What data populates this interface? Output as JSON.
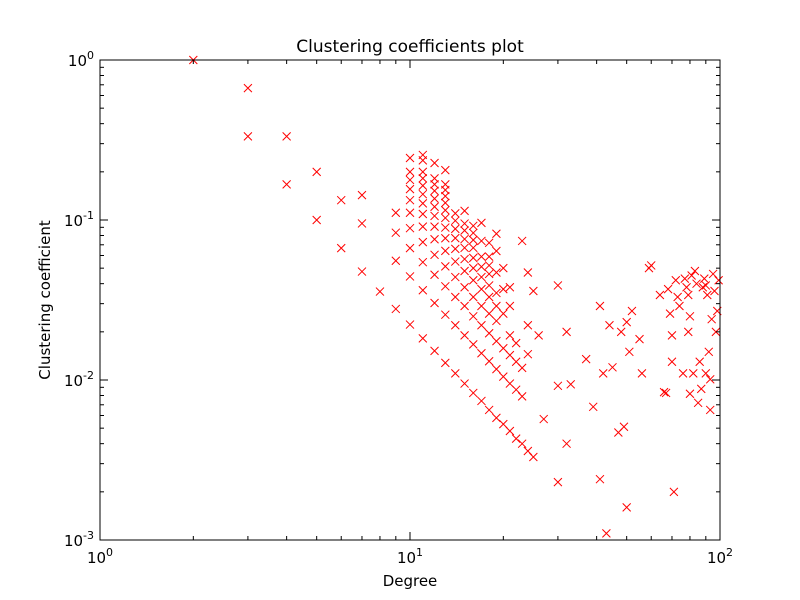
{
  "chart_data": {
    "type": "scatter",
    "title": "Clustering coefficients plot",
    "xlabel": "Degree",
    "ylabel": "Clustering coefficient",
    "x_scale": "log",
    "y_scale": "log",
    "xlim": [
      1,
      100
    ],
    "ylim": [
      0.001,
      1
    ],
    "grid": false,
    "marker": "x",
    "color": "#ff0000",
    "x_ticks": [
      {
        "base": "10",
        "exp": "0"
      },
      {
        "base": "10",
        "exp": "1"
      },
      {
        "base": "10",
        "exp": "2"
      }
    ],
    "y_ticks": [
      {
        "base": "10",
        "exp": "-3"
      },
      {
        "base": "10",
        "exp": "-2"
      },
      {
        "base": "10",
        "exp": "-1"
      },
      {
        "base": "10",
        "exp": "0"
      }
    ],
    "points": [
      [
        2,
        1.0
      ],
      [
        3,
        0.667
      ],
      [
        3,
        0.333
      ],
      [
        4,
        0.333
      ],
      [
        4,
        0.167
      ],
      [
        5,
        0.2
      ],
      [
        5,
        0.1
      ],
      [
        6,
        0.133
      ],
      [
        6,
        0.0667
      ],
      [
        7,
        0.143
      ],
      [
        7,
        0.0952
      ],
      [
        7,
        0.0476
      ],
      [
        8,
        0.0357
      ],
      [
        9,
        0.111
      ],
      [
        9,
        0.0833
      ],
      [
        9,
        0.0556
      ],
      [
        9,
        0.0278
      ],
      [
        10,
        0.244
      ],
      [
        10,
        0.2
      ],
      [
        10,
        0.178
      ],
      [
        10,
        0.156
      ],
      [
        10,
        0.133
      ],
      [
        10,
        0.111
      ],
      [
        10,
        0.0889
      ],
      [
        10,
        0.0667
      ],
      [
        10,
        0.0444
      ],
      [
        10,
        0.0222
      ],
      [
        11,
        0.255
      ],
      [
        11,
        0.236
      ],
      [
        11,
        0.2
      ],
      [
        11,
        0.182
      ],
      [
        11,
        0.164
      ],
      [
        11,
        0.145
      ],
      [
        11,
        0.127
      ],
      [
        11,
        0.109
      ],
      [
        11,
        0.0909
      ],
      [
        11,
        0.0727
      ],
      [
        11,
        0.0545
      ],
      [
        11,
        0.0364
      ],
      [
        11,
        0.0182
      ],
      [
        12,
        0.227
      ],
      [
        12,
        0.182
      ],
      [
        12,
        0.167
      ],
      [
        12,
        0.152
      ],
      [
        12,
        0.136
      ],
      [
        12,
        0.121
      ],
      [
        12,
        0.106
      ],
      [
        12,
        0.0909
      ],
      [
        12,
        0.0758
      ],
      [
        12,
        0.0606
      ],
      [
        12,
        0.0455
      ],
      [
        12,
        0.0303
      ],
      [
        12,
        0.0152
      ],
      [
        13,
        0.205
      ],
      [
        13,
        0.167
      ],
      [
        13,
        0.154
      ],
      [
        13,
        0.141
      ],
      [
        13,
        0.128
      ],
      [
        13,
        0.115
      ],
      [
        13,
        0.103
      ],
      [
        13,
        0.0897
      ],
      [
        13,
        0.0769
      ],
      [
        13,
        0.0641
      ],
      [
        13,
        0.0513
      ],
      [
        13,
        0.0385
      ],
      [
        13,
        0.0256
      ],
      [
        13,
        0.0128
      ],
      [
        14,
        0.11
      ],
      [
        14,
        0.099
      ],
      [
        14,
        0.088
      ],
      [
        14,
        0.077
      ],
      [
        14,
        0.066
      ],
      [
        14,
        0.055
      ],
      [
        14,
        0.044
      ],
      [
        14,
        0.033
      ],
      [
        14,
        0.022
      ],
      [
        14,
        0.011
      ],
      [
        15,
        0.114
      ],
      [
        15,
        0.095
      ],
      [
        15,
        0.086
      ],
      [
        15,
        0.076
      ],
      [
        15,
        0.067
      ],
      [
        15,
        0.057
      ],
      [
        15,
        0.048
      ],
      [
        15,
        0.038
      ],
      [
        15,
        0.029
      ],
      [
        15,
        0.019
      ],
      [
        15,
        0.0095
      ],
      [
        16,
        0.092
      ],
      [
        16,
        0.083
      ],
      [
        16,
        0.075
      ],
      [
        16,
        0.067
      ],
      [
        16,
        0.058
      ],
      [
        16,
        0.05
      ],
      [
        16,
        0.042
      ],
      [
        16,
        0.033
      ],
      [
        16,
        0.025
      ],
      [
        16,
        0.0167
      ],
      [
        16,
        0.0083
      ],
      [
        17,
        0.096
      ],
      [
        17,
        0.074
      ],
      [
        17,
        0.059
      ],
      [
        17,
        0.051
      ],
      [
        17,
        0.044
      ],
      [
        17,
        0.037
      ],
      [
        17,
        0.029
      ],
      [
        17,
        0.022
      ],
      [
        17,
        0.0147
      ],
      [
        17,
        0.0074
      ],
      [
        18,
        0.072
      ],
      [
        18,
        0.059
      ],
      [
        18,
        0.052
      ],
      [
        18,
        0.046
      ],
      [
        18,
        0.039
      ],
      [
        18,
        0.033
      ],
      [
        18,
        0.026
      ],
      [
        18,
        0.0196
      ],
      [
        18,
        0.0131
      ],
      [
        18,
        0.0065
      ],
      [
        19,
        0.082
      ],
      [
        19,
        0.064
      ],
      [
        19,
        0.047
      ],
      [
        19,
        0.035
      ],
      [
        19,
        0.029
      ],
      [
        19,
        0.0234
      ],
      [
        19,
        0.0175
      ],
      [
        19,
        0.0117
      ],
      [
        19,
        0.0058
      ],
      [
        20,
        0.05
      ],
      [
        20,
        0.037
      ],
      [
        20,
        0.026
      ],
      [
        20,
        0.0158
      ],
      [
        20,
        0.0105
      ],
      [
        20,
        0.0053
      ],
      [
        21,
        0.038
      ],
      [
        21,
        0.029
      ],
      [
        21,
        0.019
      ],
      [
        21,
        0.0143
      ],
      [
        21,
        0.0095
      ],
      [
        21,
        0.0048
      ],
      [
        22,
        0.017
      ],
      [
        22,
        0.013
      ],
      [
        22,
        0.0087
      ],
      [
        22,
        0.0043
      ],
      [
        23,
        0.074
      ],
      [
        23,
        0.0119
      ],
      [
        23,
        0.0079
      ],
      [
        23,
        0.004
      ],
      [
        24,
        0.047
      ],
      [
        24,
        0.022
      ],
      [
        24,
        0.0145
      ],
      [
        24,
        0.0036
      ],
      [
        25,
        0.036
      ],
      [
        25,
        0.0033
      ],
      [
        26,
        0.019
      ],
      [
        27,
        0.0057
      ],
      [
        30,
        0.039
      ],
      [
        30,
        0.0092
      ],
      [
        30,
        0.0023
      ],
      [
        32,
        0.02
      ],
      [
        32,
        0.004
      ],
      [
        33,
        0.0094
      ],
      [
        37,
        0.0135
      ],
      [
        39,
        0.0068
      ],
      [
        41,
        0.029
      ],
      [
        41,
        0.0024
      ],
      [
        42,
        0.011
      ],
      [
        43,
        0.0011
      ],
      [
        44,
        0.022
      ],
      [
        45,
        0.012
      ],
      [
        47,
        0.0047
      ],
      [
        48,
        0.02
      ],
      [
        49,
        0.0051
      ],
      [
        50,
        0.0016
      ],
      [
        50,
        0.023
      ],
      [
        51,
        0.015
      ],
      [
        52,
        0.027
      ],
      [
        55,
        0.018
      ],
      [
        56,
        0.011
      ],
      [
        59,
        0.05
      ],
      [
        60,
        0.052
      ],
      [
        64,
        0.034
      ],
      [
        66,
        0.0084
      ],
      [
        67,
        0.0083
      ],
      [
        68,
        0.037
      ],
      [
        69,
        0.026
      ],
      [
        70,
        0.013
      ],
      [
        70,
        0.019
      ],
      [
        71,
        0.002
      ],
      [
        72,
        0.042
      ],
      [
        73,
        0.033
      ],
      [
        74,
        0.029
      ],
      [
        76,
        0.011
      ],
      [
        77,
        0.043
      ],
      [
        78,
        0.038
      ],
      [
        79,
        0.034
      ],
      [
        79,
        0.02
      ],
      [
        80,
        0.025
      ],
      [
        80,
        0.0082
      ],
      [
        81,
        0.045
      ],
      [
        82,
        0.011
      ],
      [
        83,
        0.048
      ],
      [
        84,
        0.04
      ],
      [
        85,
        0.0072
      ],
      [
        86,
        0.013
      ],
      [
        87,
        0.0088
      ],
      [
        88,
        0.038
      ],
      [
        89,
        0.043
      ],
      [
        90,
        0.039
      ],
      [
        90,
        0.011
      ],
      [
        91,
        0.034
      ],
      [
        92,
        0.015
      ],
      [
        93,
        0.0101
      ],
      [
        93,
        0.0065
      ],
      [
        94,
        0.024
      ],
      [
        95,
        0.046
      ],
      [
        96,
        0.036
      ],
      [
        97,
        0.02
      ],
      [
        98,
        0.027
      ],
      [
        99,
        0.042
      ]
    ]
  }
}
